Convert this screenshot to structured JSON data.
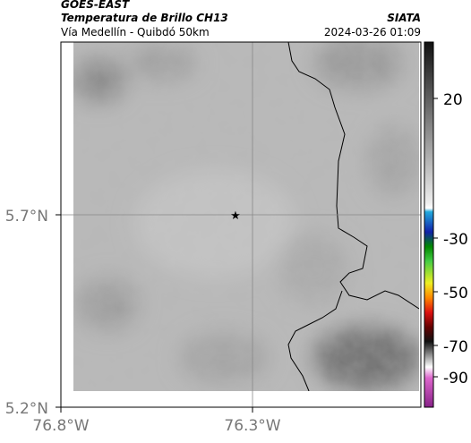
{
  "header": {
    "source": "GOES-EAST",
    "title": "Temperatura de Brillo CH13",
    "subtitle": "Vía Medellín - Quibdó 50km",
    "org": "SIATA",
    "timestamp": "2024-03-26 01:09"
  },
  "axes": {
    "y_labels": [
      "5.7°N",
      "5.2°N"
    ],
    "x_labels": [
      "76.8°W",
      "76.3°W"
    ]
  },
  "colorbar": {
    "ticks": [
      20,
      -30,
      -50,
      -70,
      -90
    ]
  }
}
